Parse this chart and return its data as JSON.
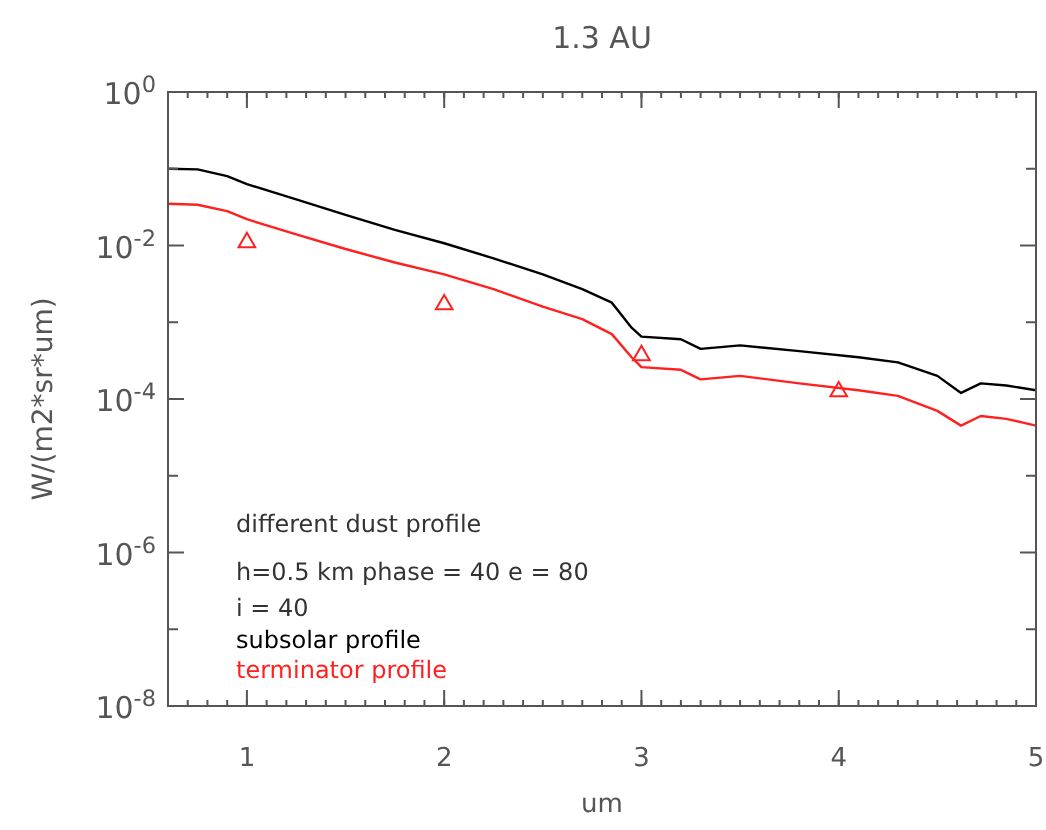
{
  "chart_data": {
    "type": "line",
    "title": "1.3 AU",
    "xlabel": "um",
    "ylabel": "W/(m2*sr*um)",
    "log": "y",
    "xlim": [
      0.6,
      5
    ],
    "ylim": [
      1e-08,
      1
    ],
    "xticks": [
      1,
      2,
      3,
      4,
      5
    ],
    "yticks": [
      {
        "value": 1,
        "label": "10$^{0}$"
      },
      {
        "value": 0.1,
        "label": null
      },
      {
        "value": 0.01,
        "label": "10$^{-2}$"
      },
      {
        "value": 0.001,
        "label": null
      },
      {
        "value": 0.0001,
        "label": "10$^{-4}$"
      },
      {
        "value": 1e-05,
        "label": null
      },
      {
        "value": 1e-06,
        "label": "10$^{-6}$"
      },
      {
        "value": 1e-07,
        "label": null
      },
      {
        "value": 1e-08,
        "label": "10$^{-8}$"
      }
    ],
    "annotations": [
      "different dust profile",
      "h=0.5 km  phase = 40 e = 80",
      "i = 40"
    ],
    "legend": "left",
    "marker": "none",
    "line_style": "solid",
    "series": [
      {
        "name": "subsolar profile",
        "color": "#000000",
        "x": [
          0.6,
          0.75,
          0.9,
          1.0,
          1.25,
          1.5,
          1.75,
          2.0,
          2.25,
          2.5,
          2.7,
          2.85,
          2.95,
          3.0,
          3.2,
          3.3,
          3.5,
          3.8,
          4.1,
          4.3,
          4.5,
          4.62,
          4.72,
          4.85,
          5.0
        ],
        "values": [
          0.1,
          0.098,
          0.08,
          0.063,
          0.04,
          0.025,
          0.016,
          0.0107,
          0.0068,
          0.0042,
          0.0027,
          0.0018,
          0.00085,
          0.00065,
          0.0006,
          0.00045,
          0.0005,
          0.00042,
          0.00035,
          0.0003,
          0.0002,
          0.00012,
          0.00016,
          0.00015,
          0.00013
        ]
      },
      {
        "name": "terminator profile",
        "color": "#ff2020",
        "x": [
          0.6,
          0.75,
          0.9,
          1.0,
          1.25,
          1.5,
          1.75,
          2.0,
          2.25,
          2.5,
          2.7,
          2.85,
          2.95,
          3.0,
          3.2,
          3.3,
          3.5,
          3.8,
          4.1,
          4.3,
          4.5,
          4.62,
          4.72,
          4.85,
          5.0
        ],
        "values": [
          0.035,
          0.034,
          0.028,
          0.022,
          0.014,
          0.009,
          0.006,
          0.0042,
          0.0027,
          0.0016,
          0.0011,
          0.0007,
          0.00035,
          0.00026,
          0.00024,
          0.00018,
          0.0002,
          0.00016,
          0.00013,
          0.00011,
          7e-05,
          4.5e-05,
          6e-05,
          5.5e-05,
          4.5e-05
        ]
      },
      {
        "type": "scatter",
        "marker": "triangle",
        "color": "#ff2020",
        "x": [
          1,
          2,
          3,
          4
        ],
        "values": [
          0.011,
          0.0017,
          0.00037,
          0.000125
        ]
      }
    ]
  }
}
